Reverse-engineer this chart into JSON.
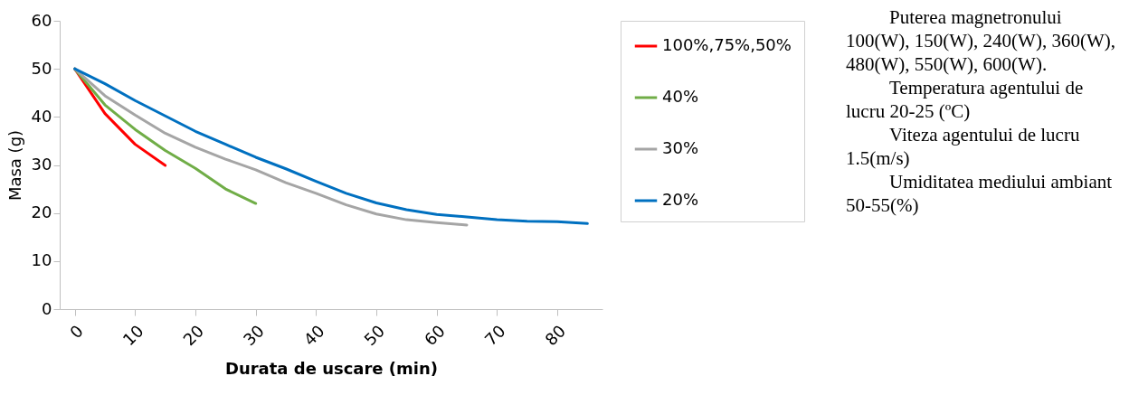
{
  "chart_data": {
    "type": "line",
    "xlabel": "Durata de uscare (min)",
    "ylabel": "Masa (g)",
    "xlim": [
      -2.5,
      87.5
    ],
    "xticks": [
      0,
      10,
      20,
      30,
      40,
      50,
      60,
      70,
      80
    ],
    "ylim": [
      0,
      60
    ],
    "yticks": [
      0,
      10,
      20,
      30,
      40,
      50,
      60
    ],
    "grid": false,
    "legend": "right",
    "series": [
      {
        "name": "100%,75%,50%",
        "color": "#ff0000",
        "x": [
          0,
          5,
          10,
          15
        ],
        "values": [
          50,
          40.7,
          34.3,
          29.9
        ]
      },
      {
        "name": "40%",
        "color": "#70ad47",
        "x": [
          0,
          5,
          10,
          15,
          20,
          25,
          30
        ],
        "values": [
          50,
          42.5,
          37.4,
          33.0,
          29.3,
          25.0,
          22.0
        ]
      },
      {
        "name": "30%",
        "color": "#a5a5a5",
        "x": [
          0,
          5,
          10,
          15,
          20,
          25,
          30,
          35,
          40,
          45,
          50,
          55,
          60,
          65
        ],
        "values": [
          50,
          44.4,
          40.4,
          36.6,
          33.7,
          31.2,
          29.0,
          26.3,
          24.1,
          21.7,
          19.8,
          18.6,
          18.0,
          17.5
        ]
      },
      {
        "name": "20%",
        "color": "#0070c0",
        "x": [
          0,
          5,
          10,
          15,
          20,
          25,
          30,
          35,
          40,
          45,
          50,
          55,
          60,
          65,
          70,
          75,
          80,
          85
        ],
        "values": [
          50,
          46.9,
          43.4,
          40.2,
          37.0,
          34.3,
          31.6,
          29.2,
          26.6,
          24.1,
          22.1,
          20.7,
          19.7,
          19.2,
          18.6,
          18.3,
          18.2,
          17.8
        ]
      }
    ],
    "annotations": [
      "Puterea magnetronului 100(W), 150(W), 240(W), 360(W), 480(W), 550(W), 600(W).",
      "Temperatura agentului de lucru 20-25 (ºC)",
      "Viteza agentului de lucru 1.5(m/s)",
      "Umiditatea mediului ambiant 50-55(%)"
    ]
  }
}
